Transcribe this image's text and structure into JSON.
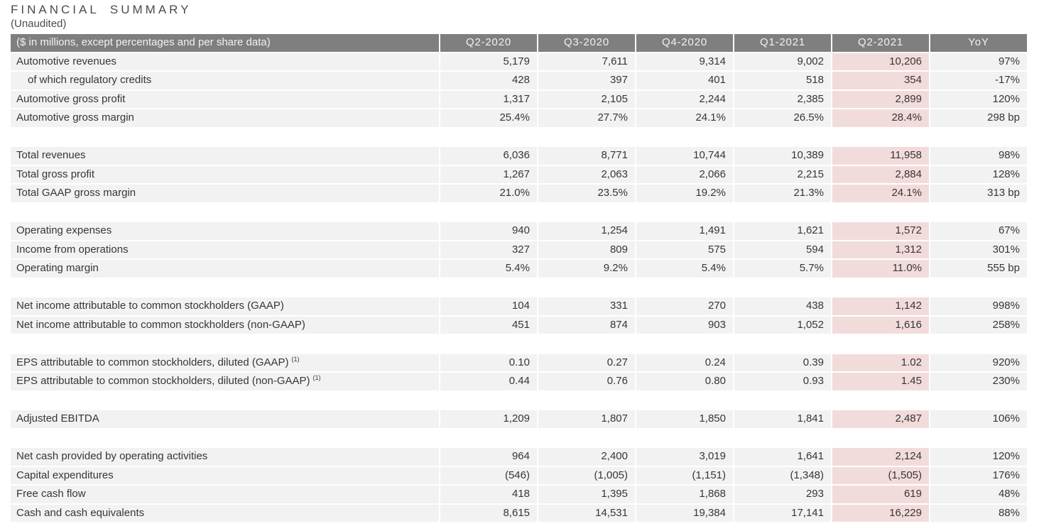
{
  "title": "FINANCIAL SUMMARY",
  "subtitle": "(Unaudited)",
  "colors": {
    "header_bg": "#7f7f7f",
    "header_text": "#f2f2f2",
    "row_bg": "#f2f2f2",
    "highlight_bg": "#f2dcdb",
    "body_text": "#363636",
    "title_text": "#4b4b4b"
  },
  "chart_data": {
    "type": "table",
    "title": "FINANCIAL SUMMARY (Unaudited)",
    "columns": [
      "($ in millions, except percentages and per share data)",
      "Q2-2020",
      "Q3-2020",
      "Q4-2020",
      "Q1-2021",
      "Q2-2021",
      "YoY"
    ],
    "highlight_column": "Q2-2021",
    "highlight_value_index": 4,
    "footnote_marker": "(1)",
    "sections": [
      {
        "rows": [
          {
            "label": "Automotive revenues",
            "values": [
              "5,179",
              "7,611",
              "9,314",
              "9,002",
              "10,206",
              "97%"
            ]
          },
          {
            "label": "of which regulatory credits",
            "indent": true,
            "values": [
              "428",
              "397",
              "401",
              "518",
              "354",
              "-17%"
            ]
          },
          {
            "label": "Automotive gross profit",
            "values": [
              "1,317",
              "2,105",
              "2,244",
              "2,385",
              "2,899",
              "120%"
            ]
          },
          {
            "label": "Automotive gross margin",
            "values": [
              "25.4%",
              "27.7%",
              "24.1%",
              "26.5%",
              "28.4%",
              "298 bp"
            ]
          }
        ]
      },
      {
        "rows": [
          {
            "label": "Total revenues",
            "values": [
              "6,036",
              "8,771",
              "10,744",
              "10,389",
              "11,958",
              "98%"
            ]
          },
          {
            "label": "Total gross profit",
            "values": [
              "1,267",
              "2,063",
              "2,066",
              "2,215",
              "2,884",
              "128%"
            ]
          },
          {
            "label": "Total GAAP gross margin",
            "values": [
              "21.0%",
              "23.5%",
              "19.2%",
              "21.3%",
              "24.1%",
              "313 bp"
            ]
          }
        ]
      },
      {
        "rows": [
          {
            "label": "Operating expenses",
            "values": [
              "940",
              "1,254",
              "1,491",
              "1,621",
              "1,572",
              "67%"
            ]
          },
          {
            "label": "Income from operations",
            "values": [
              "327",
              "809",
              "575",
              "594",
              "1,312",
              "301%"
            ]
          },
          {
            "label": "Operating margin",
            "values": [
              "5.4%",
              "9.2%",
              "5.4%",
              "5.7%",
              "11.0%",
              "555 bp"
            ]
          }
        ]
      },
      {
        "rows": [
          {
            "label": "Net income attributable to common stockholders (GAAP)",
            "values": [
              "104",
              "331",
              "270",
              "438",
              "1,142",
              "998%"
            ]
          },
          {
            "label": "Net income attributable to common stockholders (non-GAAP)",
            "values": [
              "451",
              "874",
              "903",
              "1,052",
              "1,616",
              "258%"
            ]
          }
        ]
      },
      {
        "rows": [
          {
            "label": "EPS attributable to common stockholders, diluted (GAAP)",
            "sup": "(1)",
            "values": [
              "0.10",
              "0.27",
              "0.24",
              "0.39",
              "1.02",
              "920%"
            ]
          },
          {
            "label": "EPS attributable to common stockholders, diluted (non-GAAP)",
            "sup": "(1)",
            "values": [
              "0.44",
              "0.76",
              "0.80",
              "0.93",
              "1.45",
              "230%"
            ]
          }
        ]
      },
      {
        "rows": [
          {
            "label": "Adjusted EBITDA",
            "values": [
              "1,209",
              "1,807",
              "1,850",
              "1,841",
              "2,487",
              "106%"
            ]
          }
        ]
      },
      {
        "rows": [
          {
            "label": "Net cash provided by operating activities",
            "values": [
              "964",
              "2,400",
              "3,019",
              "1,641",
              "2,124",
              "120%"
            ]
          },
          {
            "label": "Capital expenditures",
            "values": [
              "(546)",
              "(1,005)",
              "(1,151)",
              "(1,348)",
              "(1,505)",
              "176%"
            ]
          },
          {
            "label": "Free cash flow",
            "values": [
              "418",
              "1,395",
              "1,868",
              "293",
              "619",
              "48%"
            ]
          },
          {
            "label": "Cash and cash equivalents",
            "values": [
              "8,615",
              "14,531",
              "19,384",
              "17,141",
              "16,229",
              "88%"
            ]
          }
        ]
      }
    ]
  }
}
